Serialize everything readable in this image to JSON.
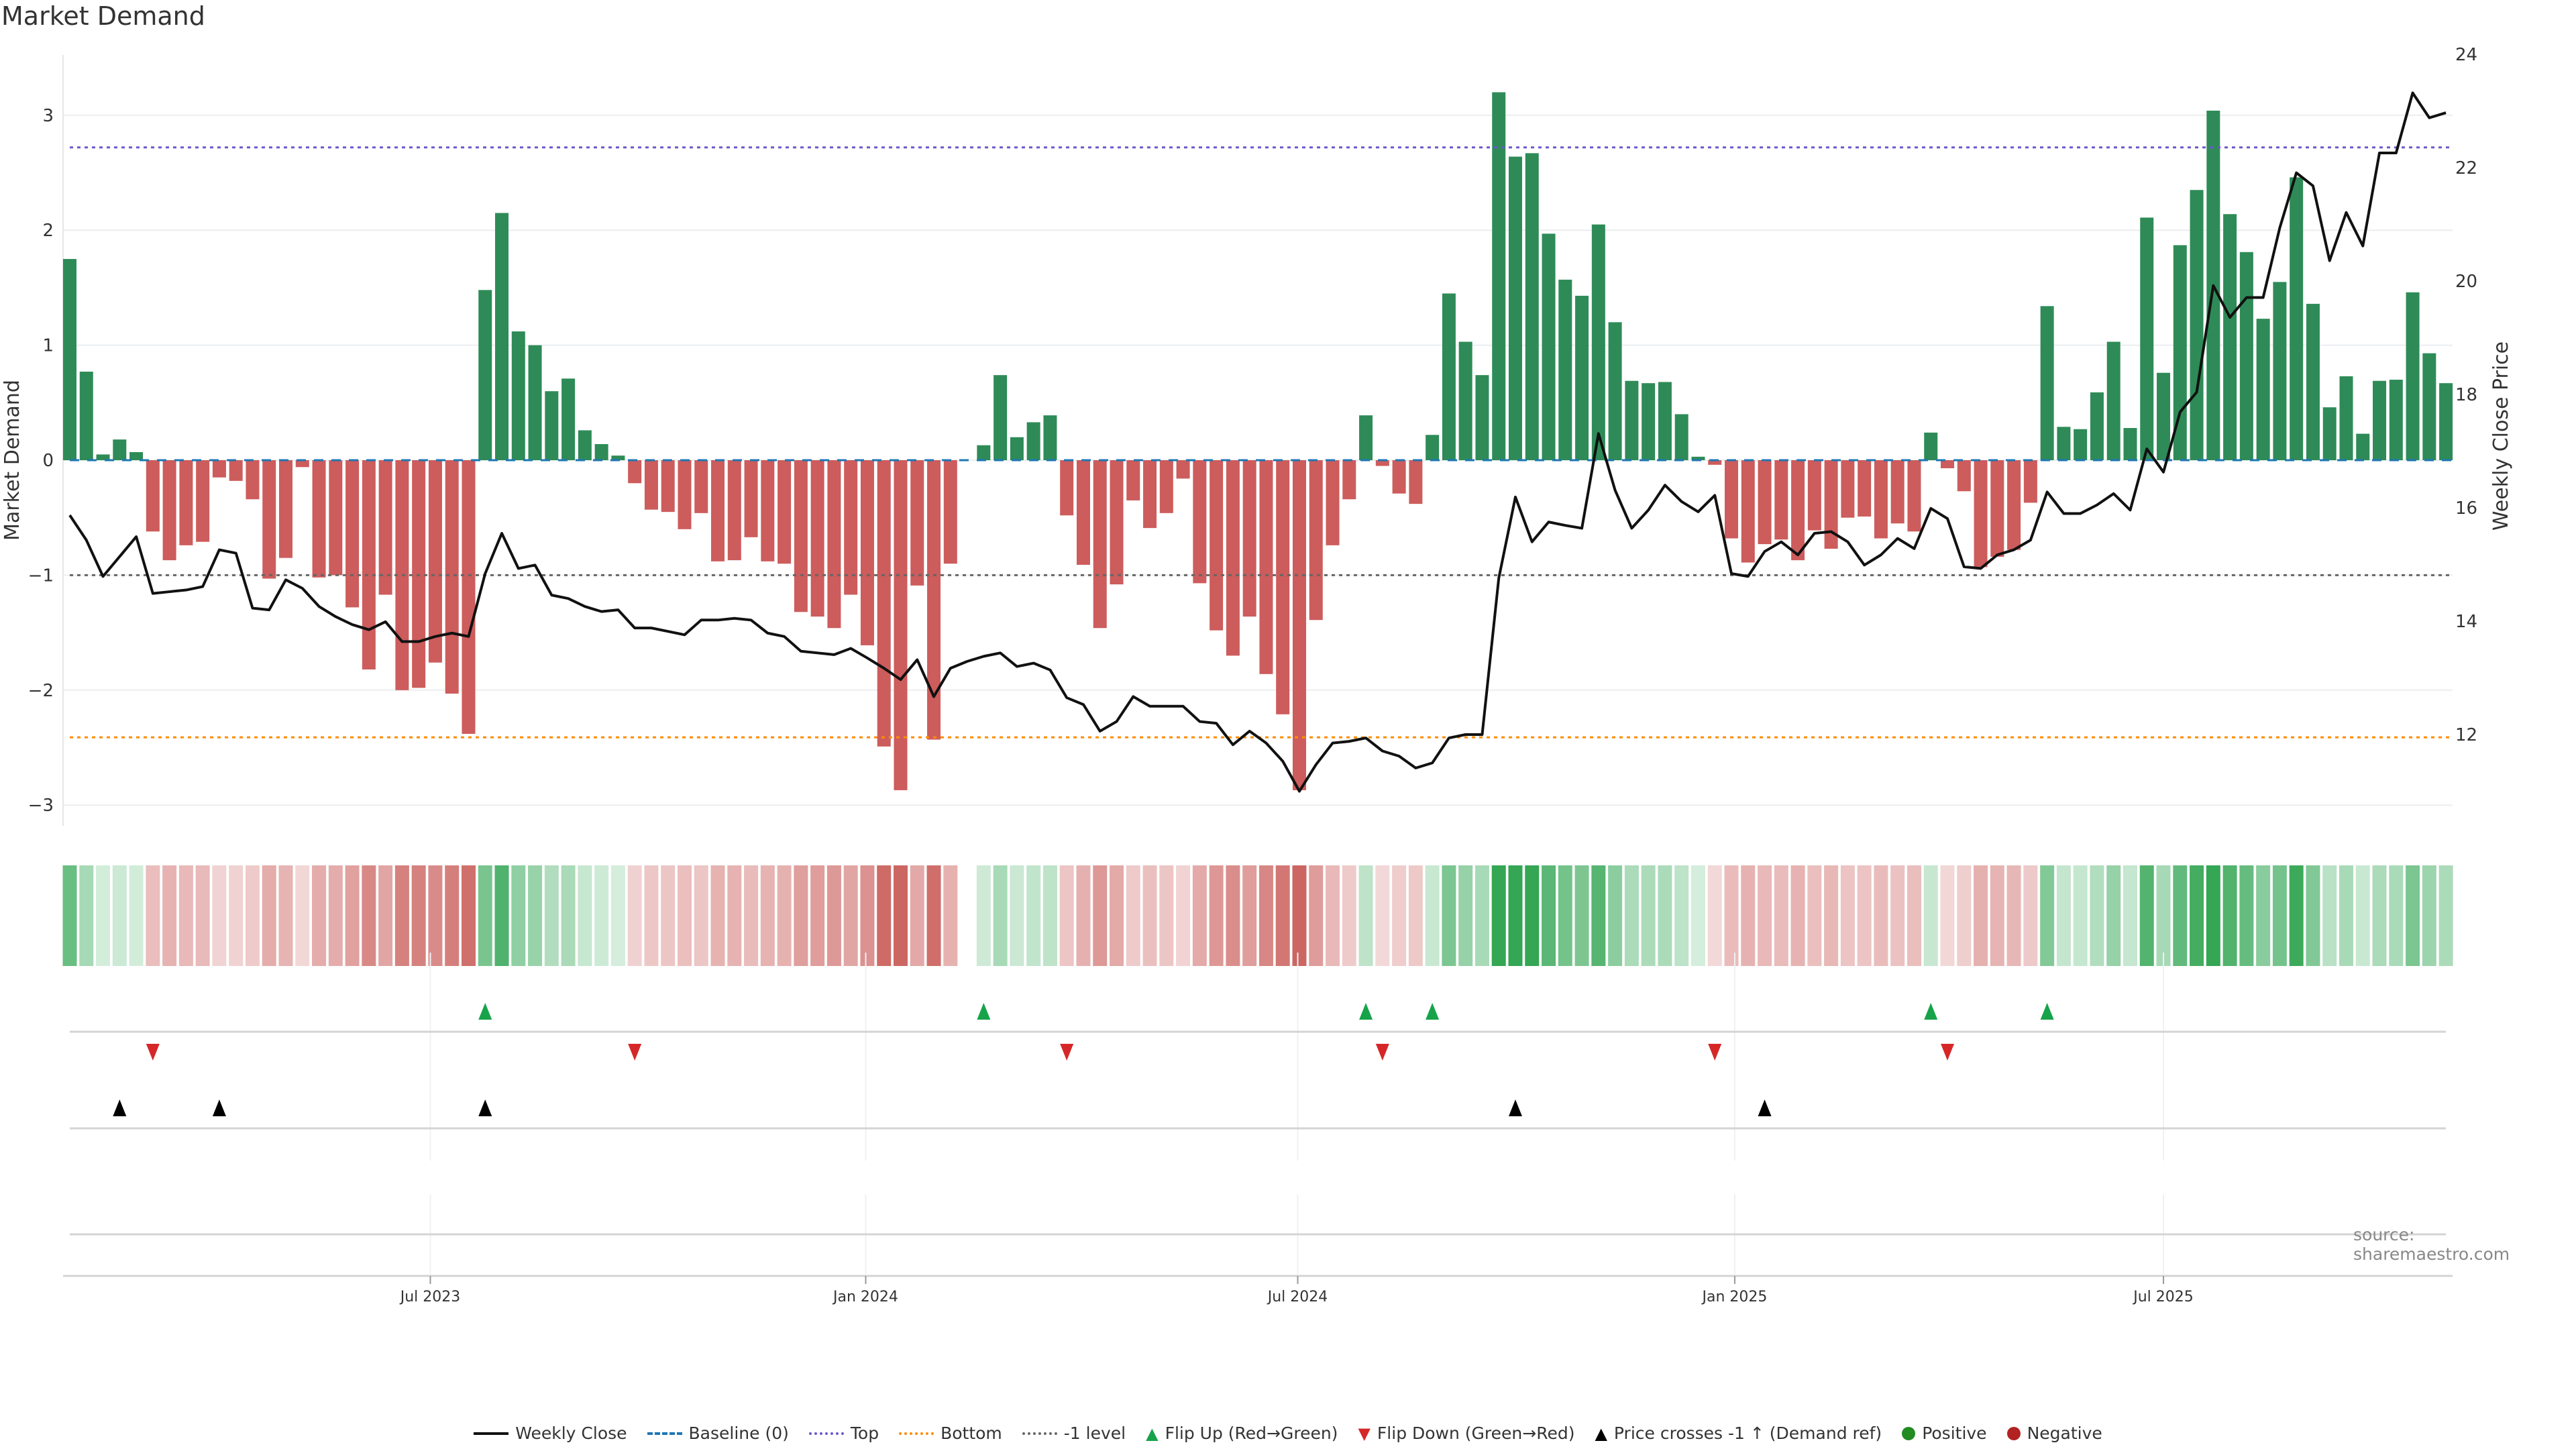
{
  "title": "Market Demand",
  "source": "source: sharemaestro.com",
  "colors": {
    "positive_bar": "#2e8b57",
    "negative_bar": "#cd5c5c",
    "price_line": "#111111",
    "baseline": "#1f77b4",
    "top": "#6a5acd",
    "bottom": "#ff8c00",
    "minus_one": "#666666",
    "flip_up": "#17a34a",
    "flip_down": "#d62728",
    "cross": "#000000",
    "positive_dot": "#228b22",
    "negative_dot": "#b22222"
  },
  "legend": [
    {
      "label": "Weekly Close",
      "kind": "solid",
      "color": "#111111"
    },
    {
      "label": "Baseline (0)",
      "kind": "dashed",
      "color": "#1f77b4"
    },
    {
      "label": "Top",
      "kind": "dotted",
      "color": "#6a5acd"
    },
    {
      "label": "Bottom",
      "kind": "dotted",
      "color": "#ff8c00"
    },
    {
      "label": "-1 level",
      "kind": "dotted",
      "color": "#666666"
    },
    {
      "label": "Flip Up (Red→Green)",
      "kind": "tri-up",
      "color": "#17a34a"
    },
    {
      "label": "Flip Down (Green→Red)",
      "kind": "tri-down",
      "color": "#d62728"
    },
    {
      "label": "Price crosses -1 ↑ (Demand ref)",
      "kind": "tri-up",
      "color": "#000000"
    },
    {
      "label": "Positive",
      "kind": "dot",
      "color": "#228b22"
    },
    {
      "label": "Negative",
      "kind": "dot",
      "color": "#b22222"
    }
  ],
  "chart_data": {
    "type": "bar",
    "title": "Market Demand",
    "xlabel": "",
    "ylabel": "Market Demand",
    "y2label": "Weekly Close Price",
    "ylim": [
      -3.3,
      3.55
    ],
    "y2lim": [
      10.6,
      24.2
    ],
    "yticks": [
      -3,
      -2,
      -1,
      0,
      1,
      2,
      3
    ],
    "y2ticks": [
      12,
      14,
      16,
      18,
      20,
      22,
      24
    ],
    "x_ticks": [
      {
        "label": "Jul 2023",
        "week": 21.7
      },
      {
        "label": "Jan 2024",
        "week": 47.9
      },
      {
        "label": "Jul 2024",
        "week": 73.9
      },
      {
        "label": "Jan 2025",
        "week": 100.2
      },
      {
        "label": "Jul 2025",
        "week": 126.0
      }
    ],
    "reference_lines": {
      "baseline": 0,
      "top": 2.72,
      "bottom": -2.41,
      "minus_one": -1
    },
    "demand": [
      1.75,
      0.77,
      0.05,
      0.18,
      0.07,
      -0.62,
      -0.87,
      -0.74,
      -0.71,
      -0.15,
      -0.18,
      -0.34,
      -1.03,
      -0.85,
      -0.06,
      -1.02,
      -1.0,
      -1.28,
      -1.82,
      -1.17,
      -2.0,
      -1.98,
      -1.76,
      -2.03,
      -2.38,
      1.48,
      2.15,
      1.12,
      1.0,
      0.6,
      0.71,
      0.26,
      0.14,
      0.04,
      -0.2,
      -0.43,
      -0.45,
      -0.6,
      -0.46,
      -0.88,
      -0.87,
      -0.67,
      -0.88,
      -0.9,
      -1.32,
      -1.36,
      -1.46,
      -1.17,
      -1.61,
      -2.49,
      -2.87,
      -1.09,
      -2.43,
      -0.9,
      null,
      0.13,
      0.74,
      0.2,
      0.33,
      0.39,
      -0.48,
      -0.91,
      -1.46,
      -1.08,
      -0.35,
      -0.59,
      -0.46,
      -0.16,
      -1.07,
      -1.48,
      -1.7,
      -1.36,
      -1.86,
      -2.21,
      -2.87,
      -1.39,
      -0.74,
      -0.34,
      0.39,
      -0.05,
      -0.29,
      -0.38,
      0.22,
      1.45,
      1.03,
      0.74,
      3.2,
      2.64,
      2.67,
      1.97,
      1.57,
      1.43,
      2.05,
      1.2,
      0.69,
      0.67,
      0.68,
      0.4,
      0.03,
      -0.04,
      -0.68,
      -0.89,
      -0.73,
      -0.69,
      -0.87,
      -0.61,
      -0.77,
      -0.5,
      -0.49,
      -0.68,
      -0.55,
      -0.62,
      0.24,
      -0.07,
      -0.27,
      -0.93,
      -0.84,
      -0.78,
      -0.37,
      1.34,
      0.29,
      0.27,
      0.59,
      1.03,
      0.28,
      2.11,
      0.76,
      1.87,
      2.35,
      3.04,
      2.14,
      1.81,
      1.23,
      1.55,
      2.46,
      1.36,
      0.46,
      0.73,
      0.23,
      0.69,
      0.7,
      1.46,
      0.93,
      0.67
    ],
    "weekly_close": [
      15.87,
      15.43,
      14.79,
      15.14,
      15.49,
      14.49,
      14.52,
      14.55,
      14.61,
      15.26,
      15.2,
      14.23,
      14.2,
      14.73,
      14.58,
      14.26,
      14.08,
      13.94,
      13.85,
      13.99,
      13.64,
      13.64,
      13.73,
      13.79,
      13.73,
      14.84,
      15.55,
      14.93,
      14.99,
      14.46,
      14.4,
      14.26,
      14.17,
      14.2,
      13.88,
      13.88,
      13.82,
      13.76,
      14.02,
      14.02,
      14.05,
      14.02,
      13.79,
      13.73,
      13.47,
      13.44,
      13.41,
      13.52,
      13.35,
      13.17,
      12.97,
      13.32,
      12.67,
      13.17,
      13.29,
      13.38,
      13.44,
      13.2,
      13.26,
      13.14,
      12.65,
      12.53,
      12.06,
      12.23,
      12.67,
      12.5,
      12.5,
      12.5,
      12.23,
      12.2,
      11.82,
      12.06,
      11.85,
      11.53,
      11.0,
      11.47,
      11.85,
      11.88,
      11.94,
      11.71,
      11.62,
      11.41,
      11.5,
      11.94,
      12.0,
      12.0,
      14.76,
      16.19,
      15.4,
      15.75,
      15.69,
      15.64,
      17.31,
      16.31,
      15.64,
      15.96,
      16.4,
      16.11,
      15.93,
      16.22,
      14.84,
      14.79,
      15.23,
      15.4,
      15.17,
      15.55,
      15.58,
      15.4,
      14.99,
      15.17,
      15.46,
      15.28,
      15.99,
      15.81,
      14.96,
      14.93,
      15.17,
      15.26,
      15.43,
      16.28,
      15.9,
      15.9,
      16.05,
      16.25,
      15.96,
      17.04,
      16.63,
      17.69,
      18.04,
      19.92,
      19.36,
      19.71,
      19.71,
      20.94,
      21.91,
      21.68,
      20.36,
      21.21,
      20.62,
      22.26,
      22.26,
      23.32,
      22.88,
      22.97
    ],
    "flip_up_weeks": [
      25,
      55,
      78,
      82,
      112,
      119
    ],
    "flip_down_weeks": [
      5,
      34,
      60,
      79,
      99,
      113
    ],
    "price_cross_weeks": [
      3,
      9,
      25,
      87,
      102
    ]
  }
}
